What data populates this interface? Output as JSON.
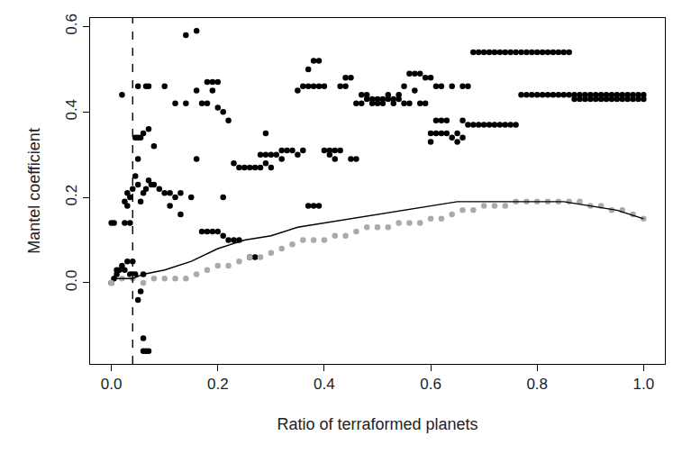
{
  "chart_data": {
    "type": "scatter",
    "x_label": "Ratio of terraformed planets",
    "y_label": "Mantel coefficient",
    "xlim": [
      -0.04,
      1.04
    ],
    "ylim": [
      -0.19,
      0.62
    ],
    "xticks": [
      {
        "value": 0,
        "label": "0.0"
      },
      {
        "value": 0.2,
        "label": "0.2"
      },
      {
        "value": 0.4,
        "label": "0.4"
      },
      {
        "value": 0.6,
        "label": "0.6"
      },
      {
        "value": 0.8,
        "label": "0.8"
      },
      {
        "value": 1,
        "label": "1.0"
      }
    ],
    "yticks": [
      {
        "value": 0,
        "label": "0.0"
      },
      {
        "value": 0.2,
        "label": "0.2"
      },
      {
        "value": 0.4,
        "label": "0.4"
      },
      {
        "value": 0.6,
        "label": "0.6"
      }
    ],
    "grid": false,
    "series": [
      {
        "type": "scatter",
        "color": "#000000",
        "marker": "circle",
        "x": [
          0,
          0,
          0.005,
          0.005,
          0.01,
          0.01,
          0.015,
          0.02,
          0.02,
          0.025,
          0.025,
          0.025,
          0.03,
          0.03,
          0.03,
          0.035,
          0.035,
          0.035,
          0.04,
          0.04,
          0.04,
          0.045,
          0.045,
          0.045,
          0.05,
          0.05,
          0.05,
          0.05,
          0.05,
          0.055,
          0.055,
          0.055,
          0.06,
          0.06,
          0.06,
          0.06,
          0.06,
          0.065,
          0.065,
          0.065,
          0.07,
          0.07,
          0.07,
          0.07,
          0.075,
          0.08,
          0.08,
          0.09,
          0.1,
          0.1,
          0.11,
          0.11,
          0.12,
          0.12,
          0.13,
          0.13,
          0.14,
          0.14,
          0.15,
          0.16,
          0.16,
          0.16,
          0.17,
          0.17,
          0.18,
          0.18,
          0.18,
          0.19,
          0.19,
          0.19,
          0.2,
          0.2,
          0.2,
          0.21,
          0.21,
          0.21,
          0.22,
          0.22,
          0.23,
          0.23,
          0.24,
          0.24,
          0.25,
          0.26,
          0.26,
          0.27,
          0.27,
          0.28,
          0.28,
          0.29,
          0.29,
          0.29,
          0.3,
          0.3,
          0.31,
          0.32,
          0.32,
          0.33,
          0.34,
          0.35,
          0.35,
          0.36,
          0.36,
          0.37,
          0.37,
          0.37,
          0.38,
          0.38,
          0.38,
          0.39,
          0.39,
          0.39,
          0.4,
          0.4,
          0.41,
          0.41,
          0.42,
          0.42,
          0.43,
          0.43,
          0.44,
          0.44,
          0.45,
          0.45,
          0.46,
          0.46,
          0.47,
          0.47,
          0.48,
          0.48,
          0.49,
          0.49,
          0.5,
          0.5,
          0.51,
          0.51,
          0.52,
          0.52,
          0.53,
          0.53,
          0.54,
          0.54,
          0.55,
          0.55,
          0.56,
          0.56,
          0.57,
          0.57,
          0.58,
          0.58,
          0.59,
          0.59,
          0.6,
          0.6,
          0.6,
          0.61,
          0.61,
          0.61,
          0.62,
          0.62,
          0.62,
          0.63,
          0.63,
          0.64,
          0.64,
          0.65,
          0.65,
          0.66,
          0.66,
          0.66,
          0.67,
          0.67,
          0.68,
          0.68,
          0.69,
          0.69,
          0.7,
          0.7,
          0.71,
          0.71,
          0.72,
          0.72,
          0.73,
          0.73,
          0.74,
          0.74,
          0.75,
          0.75,
          0.76,
          0.76,
          0.77,
          0.77,
          0.78,
          0.78,
          0.79,
          0.79,
          0.8,
          0.8,
          0.81,
          0.81,
          0.82,
          0.82,
          0.83,
          0.83,
          0.84,
          0.84,
          0.85,
          0.85,
          0.86,
          0.86,
          0.87,
          0.87,
          0.88,
          0.88,
          0.89,
          0.89,
          0.9,
          0.9,
          0.91,
          0.91,
          0.92,
          0.92,
          0.93,
          0.93,
          0.94,
          0.94,
          0.95,
          0.95,
          0.96,
          0.96,
          0.97,
          0.97,
          0.98,
          0.98,
          0.99,
          0.99,
          1,
          1
        ],
        "values": [
          0,
          0.14,
          0.01,
          0.14,
          0.02,
          0.03,
          0.03,
          0.04,
          0.44,
          0.03,
          0.14,
          0.19,
          0.05,
          0.18,
          0.21,
          0.02,
          0.2,
          0.14,
          0.05,
          0.22,
          0.02,
          0.25,
          0.34,
          0.02,
          0.23,
          -0.04,
          0.29,
          0.34,
          0.46,
          0.19,
          0.34,
          -0.02,
          -0.13,
          0.21,
          0.35,
          0.02,
          -0.16,
          -0.16,
          0.22,
          0.46,
          0.36,
          0.24,
          0.46,
          -0.16,
          0.23,
          0.32,
          0.23,
          0.22,
          0.46,
          0.21,
          0.21,
          0.18,
          0.2,
          0.42,
          0.21,
          0.16,
          0.58,
          0.42,
          0.2,
          0.59,
          0.29,
          0.45,
          0.42,
          0.12,
          0.42,
          0.12,
          0.47,
          0.47,
          0.12,
          0.45,
          0.12,
          0.41,
          0.47,
          0.4,
          0.11,
          0.2,
          0.38,
          0.1,
          0.28,
          0.1,
          0.27,
          0.1,
          0.27,
          0.27,
          0.06,
          0.27,
          0.06,
          0.27,
          0.3,
          0.3,
          0.28,
          0.35,
          0.3,
          0.27,
          0.3,
          0.31,
          0.29,
          0.31,
          0.31,
          0.3,
          0.45,
          0.46,
          0.31,
          0.46,
          0.18,
          0.5,
          0.52,
          0.46,
          0.18,
          0.52,
          0.46,
          0.18,
          0.46,
          0.31,
          0.31,
          0.3,
          0.31,
          0.29,
          0.31,
          0.46,
          0.48,
          0.46,
          0.48,
          0.29,
          0.29,
          0.42,
          0.42,
          0.44,
          0.44,
          0.43,
          0.43,
          0.42,
          0.43,
          0.42,
          0.43,
          0.42,
          0.43,
          0.44,
          0.43,
          0.42,
          0.44,
          0.43,
          0.46,
          0.42,
          0.42,
          0.49,
          0.49,
          0.45,
          0.49,
          0.42,
          0.48,
          0.42,
          0.33,
          0.48,
          0.35,
          0.35,
          0.46,
          0.38,
          0.38,
          0.35,
          0.46,
          0.35,
          0.38,
          0.34,
          0.46,
          0.35,
          0.33,
          0.38,
          0.46,
          0.34,
          0.37,
          0.46,
          0.37,
          0.54,
          0.54,
          0.37,
          0.54,
          0.37,
          0.54,
          0.37,
          0.54,
          0.37,
          0.54,
          0.37,
          0.54,
          0.37,
          0.54,
          0.37,
          0.54,
          0.37,
          0.54,
          0.44,
          0.54,
          0.44,
          0.54,
          0.44,
          0.54,
          0.44,
          0.54,
          0.44,
          0.54,
          0.44,
          0.54,
          0.44,
          0.54,
          0.44,
          0.54,
          0.44,
          0.54,
          0.44,
          0.44,
          0.43,
          0.44,
          0.43,
          0.44,
          0.43,
          0.44,
          0.43,
          0.44,
          0.43,
          0.44,
          0.43,
          0.44,
          0.43,
          0.44,
          0.43,
          0.44,
          0.43,
          0.44,
          0.43,
          0.44,
          0.43,
          0.44,
          0.43,
          0.44,
          0.43,
          0.44,
          0.43
        ]
      },
      {
        "type": "scatter",
        "color": "#aaaaaa",
        "marker": "circle",
        "x": [
          0,
          0.02,
          0.04,
          0.06,
          0.08,
          0.1,
          0.12,
          0.14,
          0.16,
          0.18,
          0.2,
          0.22,
          0.24,
          0.26,
          0.28,
          0.3,
          0.32,
          0.34,
          0.36,
          0.38,
          0.4,
          0.42,
          0.44,
          0.46,
          0.48,
          0.5,
          0.52,
          0.54,
          0.56,
          0.58,
          0.6,
          0.62,
          0.64,
          0.66,
          0.68,
          0.7,
          0.72,
          0.74,
          0.76,
          0.78,
          0.8,
          0.82,
          0.84,
          0.86,
          0.88,
          0.9,
          0.92,
          0.94,
          0.96,
          0.98,
          1
        ],
        "values": [
          0,
          0.01,
          0.01,
          0,
          0.01,
          0.01,
          0.01,
          0.01,
          0.02,
          0.03,
          0.04,
          0.04,
          0.05,
          0.06,
          0.06,
          0.07,
          0.08,
          0.09,
          0.1,
          0.1,
          0.1,
          0.11,
          0.11,
          0.12,
          0.13,
          0.13,
          0.13,
          0.14,
          0.14,
          0.14,
          0.15,
          0.15,
          0.16,
          0.17,
          0.17,
          0.18,
          0.18,
          0.18,
          0.19,
          0.19,
          0.19,
          0.19,
          0.19,
          0.19,
          0.19,
          0.18,
          0.18,
          0.17,
          0.17,
          0.16,
          0.15
        ]
      },
      {
        "type": "line",
        "color": "#000000",
        "line_style": "solid",
        "x": [
          0,
          0.04,
          0.06,
          0.1,
          0.15,
          0.2,
          0.25,
          0.3,
          0.35,
          0.4,
          0.45,
          0.5,
          0.55,
          0.6,
          0.65,
          0.7,
          0.75,
          0.8,
          0.85,
          0.9,
          0.95,
          1
        ],
        "values": [
          0.01,
          0.01,
          0.02,
          0.03,
          0.05,
          0.08,
          0.1,
          0.11,
          0.13,
          0.14,
          0.15,
          0.16,
          0.17,
          0.18,
          0.19,
          0.19,
          0.19,
          0.19,
          0.19,
          0.18,
          0.17,
          0.15
        ]
      },
      {
        "type": "line",
        "color": "#000000",
        "line_style": "dashed",
        "x": [
          0.04,
          0.04
        ],
        "values": [
          -0.19,
          0.62
        ]
      }
    ]
  }
}
